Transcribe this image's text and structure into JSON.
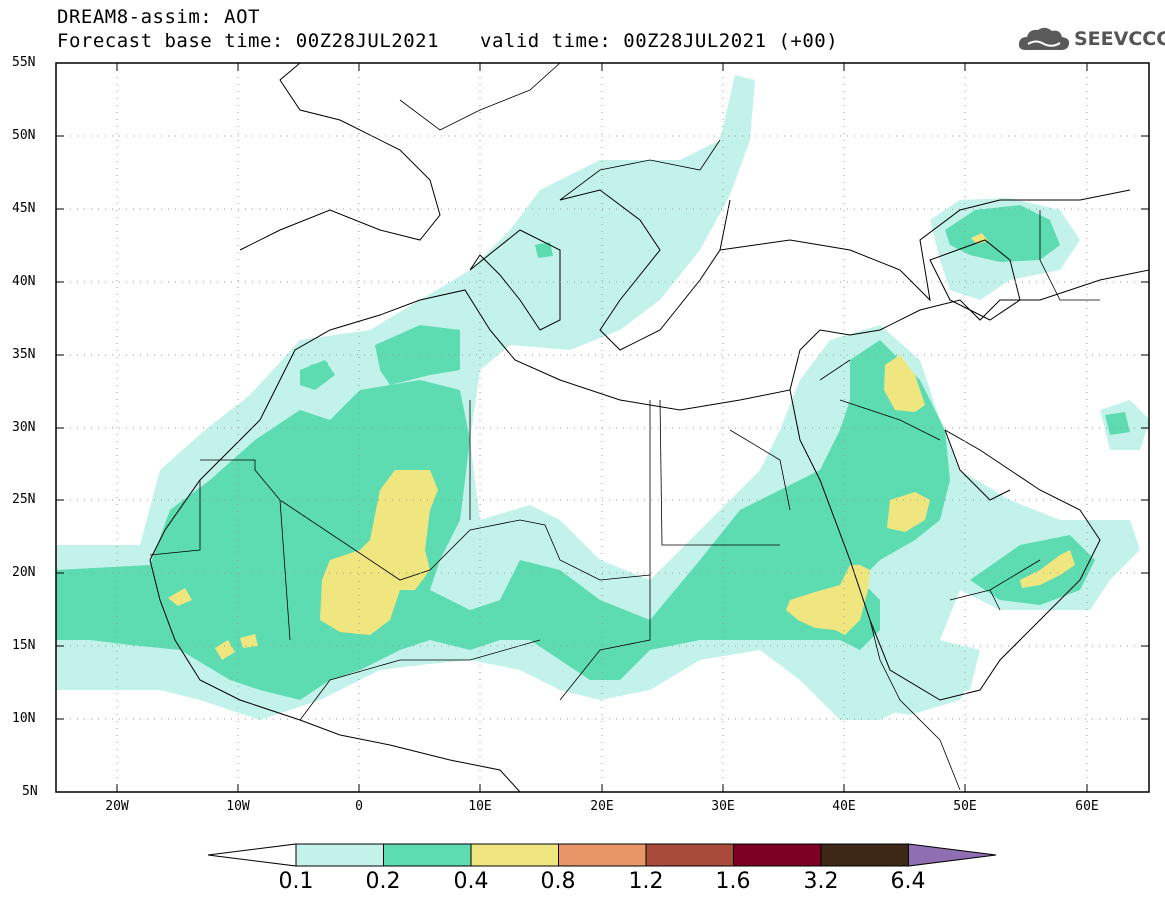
{
  "header": {
    "title": "DREAM8-assim: AOT",
    "forecast_base": "Forecast base time: 00Z28JUL2021",
    "valid_time": "valid time: 00Z28JUL2021 (+00)"
  },
  "logo": {
    "text": "SEEVCCC",
    "icon": "cloud-icon"
  },
  "map": {
    "lat_labels": [
      "55N",
      "50N",
      "45N",
      "40N",
      "35N",
      "30N",
      "25N",
      "20N",
      "15N",
      "10N",
      "5N"
    ],
    "lon_labels": [
      "20W",
      "10W",
      "0",
      "10E",
      "20E",
      "30E",
      "40E",
      "50E",
      "60E"
    ],
    "extent": {
      "lon": [
        -25,
        65
      ],
      "lat": [
        5,
        55
      ]
    },
    "grid": "dotted"
  },
  "colorbar": {
    "levels": [
      "0.1",
      "0.2",
      "0.4",
      "0.8",
      "1.2",
      "1.6",
      "3.2",
      "6.4"
    ],
    "colors": [
      "#ffffff",
      "#c3f2ea",
      "#5ddcb2",
      "#f0e680",
      "#e89668",
      "#a84b3a",
      "#7d0024",
      "#3d2716",
      "#8f6fb2"
    ]
  }
}
